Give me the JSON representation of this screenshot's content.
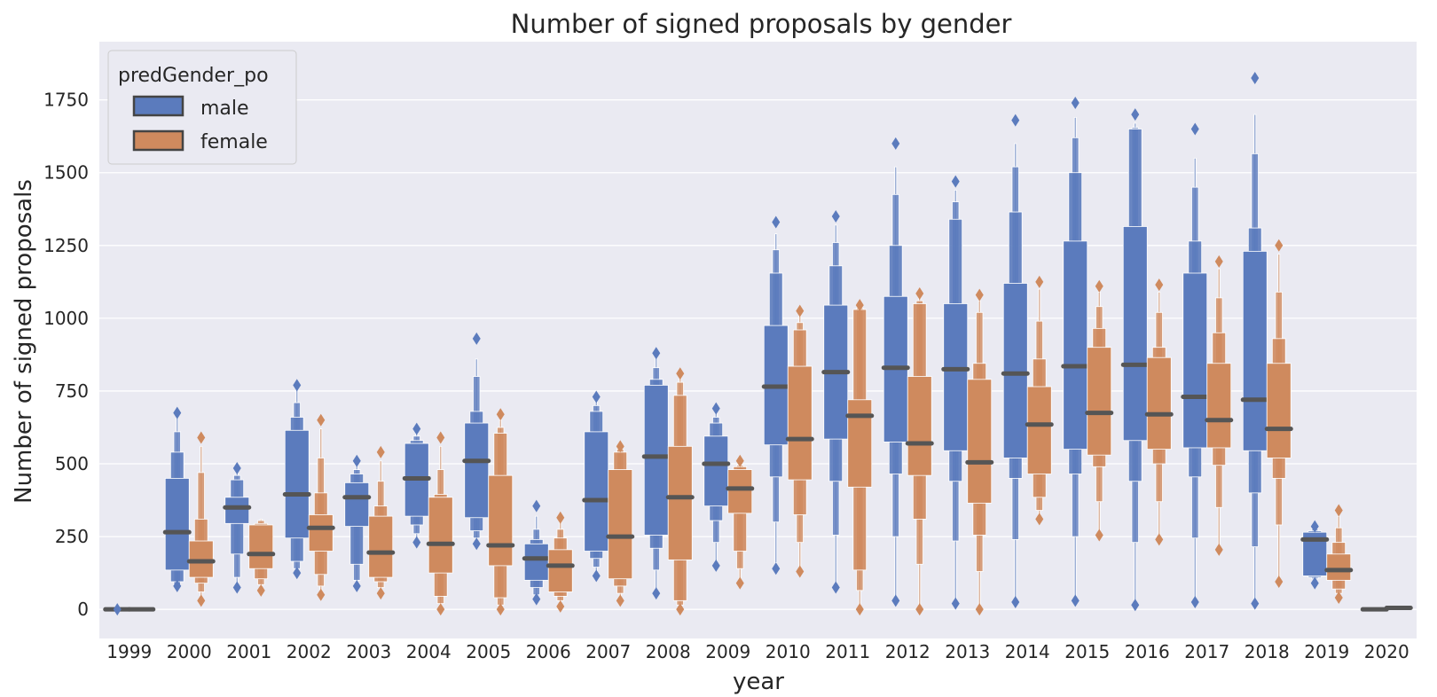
{
  "chart_data": {
    "type": "boxen",
    "title": "Number of signed proposals by gender",
    "xlabel": "year",
    "ylabel": "Number of signed proposals",
    "ylim": [
      -100,
      1950
    ],
    "yticks": [
      0,
      250,
      500,
      750,
      1000,
      1250,
      1500,
      1750
    ],
    "ytick_labels": [
      "0",
      "250",
      "500",
      "750",
      "1000",
      "1250",
      "1500",
      "1750"
    ],
    "grid": true,
    "legend": {
      "title": "predGender_po",
      "position": "top-left"
    },
    "colors": {
      "male": "#5b7bbd",
      "female": "#cf8a5e",
      "background": "#eaeaf2",
      "grid": "#ffffff",
      "median": "#555555"
    },
    "categories": [
      "1999",
      "2000",
      "2001",
      "2002",
      "2003",
      "2004",
      "2005",
      "2006",
      "2007",
      "2008",
      "2009",
      "2010",
      "2011",
      "2012",
      "2013",
      "2014",
      "2015",
      "2016",
      "2017",
      "2018",
      "2019",
      "2020"
    ],
    "series": [
      {
        "name": "male",
        "color": "#5b7bbd",
        "boxes": [
          {
            "median": 0,
            "q1": 0,
            "q3": 3,
            "lvl2": [
              0,
              3
            ],
            "lvl3": [
              0,
              3
            ],
            "whisker": [
              0,
              3
            ],
            "outliers": [
              0
            ]
          },
          {
            "median": 265,
            "q1": 135,
            "q3": 450,
            "lvl2": [
              95,
              540
            ],
            "lvl3": [
              85,
              610
            ],
            "whisker": [
              80,
              660
            ],
            "outliers": [
              80,
              675
            ]
          },
          {
            "median": 350,
            "q1": 295,
            "q3": 385,
            "lvl2": [
              190,
              445
            ],
            "lvl3": [
              110,
              460
            ],
            "whisker": [
              80,
              480
            ],
            "outliers": [
              75,
              485
            ]
          },
          {
            "median": 395,
            "q1": 245,
            "q3": 615,
            "lvl2": [
              165,
              660
            ],
            "lvl3": [
              140,
              710
            ],
            "whisker": [
              125,
              755
            ],
            "outliers": [
              125,
              770
            ]
          },
          {
            "median": 385,
            "q1": 285,
            "q3": 435,
            "lvl2": [
              155,
              465
            ],
            "lvl3": [
              100,
              480
            ],
            "whisker": [
              85,
              500
            ],
            "outliers": [
              80,
              510
            ]
          },
          {
            "median": 450,
            "q1": 320,
            "q3": 570,
            "lvl2": [
              290,
              580
            ],
            "lvl3": [
              260,
              595
            ],
            "whisker": [
              240,
              610
            ],
            "outliers": [
              230,
              620
            ]
          },
          {
            "median": 510,
            "q1": 315,
            "q3": 640,
            "lvl2": [
              270,
              680
            ],
            "lvl3": [
              245,
              800
            ],
            "whisker": [
              235,
              860
            ],
            "outliers": [
              225,
              930
            ]
          },
          {
            "median": 175,
            "q1": 100,
            "q3": 225,
            "lvl2": [
              75,
              240
            ],
            "lvl3": [
              50,
              275
            ],
            "whisker": [
              40,
              320
            ],
            "outliers": [
              35,
              355
            ]
          },
          {
            "median": 375,
            "q1": 200,
            "q3": 610,
            "lvl2": [
              175,
              680
            ],
            "lvl3": [
              145,
              700
            ],
            "whisker": [
              125,
              720
            ],
            "outliers": [
              115,
              730
            ]
          },
          {
            "median": 525,
            "q1": 255,
            "q3": 770,
            "lvl2": [
              210,
              790
            ],
            "lvl3": [
              135,
              830
            ],
            "whisker": [
              70,
              865
            ],
            "outliers": [
              55,
              880
            ]
          },
          {
            "median": 500,
            "q1": 355,
            "q3": 595,
            "lvl2": [
              305,
              640
            ],
            "lvl3": [
              230,
              660
            ],
            "whisker": [
              165,
              680
            ],
            "outliers": [
              150,
              690
            ]
          },
          {
            "median": 765,
            "q1": 565,
            "q3": 975,
            "lvl2": [
              455,
              1155
            ],
            "lvl3": [
              300,
              1235
            ],
            "whisker": [
              160,
              1290
            ],
            "outliers": [
              140,
              1330
            ]
          },
          {
            "median": 815,
            "q1": 585,
            "q3": 1045,
            "lvl2": [
              440,
              1180
            ],
            "lvl3": [
              255,
              1260
            ],
            "whisker": [
              90,
              1320
            ],
            "outliers": [
              75,
              1350
            ]
          },
          {
            "median": 830,
            "q1": 575,
            "q3": 1075,
            "lvl2": [
              465,
              1250
            ],
            "lvl3": [
              250,
              1425
            ],
            "whisker": [
              40,
              1520
            ],
            "outliers": [
              30,
              1600
            ]
          },
          {
            "median": 825,
            "q1": 545,
            "q3": 1050,
            "lvl2": [
              440,
              1340
            ],
            "lvl3": [
              235,
              1400
            ],
            "whisker": [
              25,
              1440
            ],
            "outliers": [
              20,
              1470
            ]
          },
          {
            "median": 810,
            "q1": 520,
            "q3": 1120,
            "lvl2": [
              450,
              1365
            ],
            "lvl3": [
              240,
              1520
            ],
            "whisker": [
              35,
              1600
            ],
            "outliers": [
              25,
              1680
            ]
          },
          {
            "median": 835,
            "q1": 550,
            "q3": 1265,
            "lvl2": [
              465,
              1500
            ],
            "lvl3": [
              250,
              1620
            ],
            "whisker": [
              40,
              1690
            ],
            "outliers": [
              30,
              1740
            ]
          },
          {
            "median": 840,
            "q1": 580,
            "q3": 1315,
            "lvl2": [
              440,
              1650
            ],
            "lvl3": [
              230,
              1655
            ],
            "whisker": [
              20,
              1670
            ],
            "outliers": [
              15,
              1700
            ]
          },
          {
            "median": 730,
            "q1": 555,
            "q3": 1155,
            "lvl2": [
              455,
              1265
            ],
            "lvl3": [
              245,
              1450
            ],
            "whisker": [
              35,
              1550
            ],
            "outliers": [
              25,
              1650
            ]
          },
          {
            "median": 720,
            "q1": 545,
            "q3": 1230,
            "lvl2": [
              400,
              1310
            ],
            "lvl3": [
              215,
              1565
            ],
            "whisker": [
              30,
              1700
            ],
            "outliers": [
              20,
              1825
            ]
          },
          {
            "median": 240,
            "q1": 115,
            "q3": 265,
            "lvl2": [
              110,
              270
            ],
            "lvl3": [
              105,
              275
            ],
            "whisker": [
              100,
              280
            ],
            "outliers": [
              90,
              285
            ]
          },
          {
            "median": 0,
            "q1": 0,
            "q3": 3,
            "lvl2": [
              0,
              3
            ],
            "lvl3": [
              0,
              3
            ],
            "whisker": [
              0,
              3
            ],
            "outliers": []
          }
        ]
      },
      {
        "name": "female",
        "color": "#cf8a5e",
        "boxes": [
          {
            "median": 0,
            "q1": 0,
            "q3": 3,
            "lvl2": [
              0,
              3
            ],
            "lvl3": [
              0,
              3
            ],
            "whisker": [
              0,
              3
            ],
            "outliers": []
          },
          {
            "median": 165,
            "q1": 110,
            "q3": 235,
            "lvl2": [
              90,
              310
            ],
            "lvl3": [
              60,
              470
            ],
            "whisker": [
              40,
              560
            ],
            "outliers": [
              30,
              590
            ]
          },
          {
            "median": 190,
            "q1": 140,
            "q3": 290,
            "lvl2": [
              105,
              295
            ],
            "lvl3": [
              85,
              305
            ],
            "whisker": [
              70,
              310
            ],
            "outliers": [
              65
            ]
          },
          {
            "median": 280,
            "q1": 200,
            "q3": 325,
            "lvl2": [
              120,
              400
            ],
            "lvl3": [
              80,
              520
            ],
            "whisker": [
              55,
              620
            ],
            "outliers": [
              50,
              650
            ]
          },
          {
            "median": 195,
            "q1": 110,
            "q3": 320,
            "lvl2": [
              95,
              355
            ],
            "lvl3": [
              75,
              440
            ],
            "whisker": [
              60,
              510
            ],
            "outliers": [
              55,
              540
            ]
          },
          {
            "median": 225,
            "q1": 125,
            "q3": 385,
            "lvl2": [
              45,
              395
            ],
            "lvl3": [
              20,
              480
            ],
            "whisker": [
              10,
              560
            ],
            "outliers": [
              0,
              590
            ]
          },
          {
            "median": 220,
            "q1": 150,
            "q3": 460,
            "lvl2": [
              40,
              605
            ],
            "lvl3": [
              15,
              625
            ],
            "whisker": [
              5,
              650
            ],
            "outliers": [
              0,
              670
            ]
          },
          {
            "median": 150,
            "q1": 60,
            "q3": 205,
            "lvl2": [
              45,
              245
            ],
            "lvl3": [
              30,
              275
            ],
            "whisker": [
              15,
              300
            ],
            "outliers": [
              10,
              315
            ]
          },
          {
            "median": 250,
            "q1": 105,
            "q3": 480,
            "lvl2": [
              80,
              540
            ],
            "lvl3": [
              55,
              550
            ],
            "whisker": [
              40,
              555
            ],
            "outliers": [
              30,
              560
            ]
          },
          {
            "median": 385,
            "q1": 170,
            "q3": 560,
            "lvl2": [
              30,
              735
            ],
            "lvl3": [
              15,
              780
            ],
            "whisker": [
              5,
              800
            ],
            "outliers": [
              0,
              810
            ]
          },
          {
            "median": 415,
            "q1": 330,
            "q3": 480,
            "lvl2": [
              200,
              490
            ],
            "lvl3": [
              140,
              495
            ],
            "whisker": [
              100,
              505
            ],
            "outliers": [
              90,
              510
            ]
          },
          {
            "median": 585,
            "q1": 445,
            "q3": 835,
            "lvl2": [
              325,
              960
            ],
            "lvl3": [
              230,
              985
            ],
            "whisker": [
              145,
              1010
            ],
            "outliers": [
              130,
              1025
            ]
          },
          {
            "median": 665,
            "q1": 420,
            "q3": 720,
            "lvl2": [
              135,
              1030
            ],
            "lvl3": [
              65,
              1035
            ],
            "whisker": [
              10,
              1040
            ],
            "outliers": [
              0,
              1045
            ]
          },
          {
            "median": 570,
            "q1": 460,
            "q3": 800,
            "lvl2": [
              310,
              1050
            ],
            "lvl3": [
              155,
              1060
            ],
            "whisker": [
              10,
              1075
            ],
            "outliers": [
              0,
              1085
            ]
          },
          {
            "median": 505,
            "q1": 365,
            "q3": 790,
            "lvl2": [
              255,
              845
            ],
            "lvl3": [
              130,
              1020
            ],
            "whisker": [
              10,
              1060
            ],
            "outliers": [
              0,
              1080
            ]
          },
          {
            "median": 635,
            "q1": 465,
            "q3": 765,
            "lvl2": [
              385,
              860
            ],
            "lvl3": [
              340,
              990
            ],
            "whisker": [
              320,
              1100
            ],
            "outliers": [
              310,
              1125
            ]
          },
          {
            "median": 675,
            "q1": 530,
            "q3": 900,
            "lvl2": [
              490,
              965
            ],
            "lvl3": [
              370,
              1040
            ],
            "whisker": [
              270,
              1090
            ],
            "outliers": [
              255,
              1110
            ]
          },
          {
            "median": 670,
            "q1": 550,
            "q3": 865,
            "lvl2": [
              500,
              900
            ],
            "lvl3": [
              370,
              1020
            ],
            "whisker": [
              255,
              1090
            ],
            "outliers": [
              240,
              1115
            ]
          },
          {
            "median": 650,
            "q1": 555,
            "q3": 845,
            "lvl2": [
              495,
              950
            ],
            "lvl3": [
              350,
              1070
            ],
            "whisker": [
              220,
              1170
            ],
            "outliers": [
              205,
              1195
            ]
          },
          {
            "median": 620,
            "q1": 520,
            "q3": 845,
            "lvl2": [
              450,
              930
            ],
            "lvl3": [
              290,
              1090
            ],
            "whisker": [
              110,
              1220
            ],
            "outliers": [
              95,
              1250
            ]
          },
          {
            "median": 135,
            "q1": 100,
            "q3": 190,
            "lvl2": [
              70,
              230
            ],
            "lvl3": [
              55,
              280
            ],
            "whisker": [
              45,
              320
            ],
            "outliers": [
              40,
              340
            ]
          },
          {
            "median": 5,
            "q1": 2,
            "q3": 10,
            "lvl2": [
              2,
              10
            ],
            "lvl3": [
              2,
              10
            ],
            "whisker": [
              2,
              10
            ],
            "outliers": []
          }
        ]
      }
    ]
  }
}
